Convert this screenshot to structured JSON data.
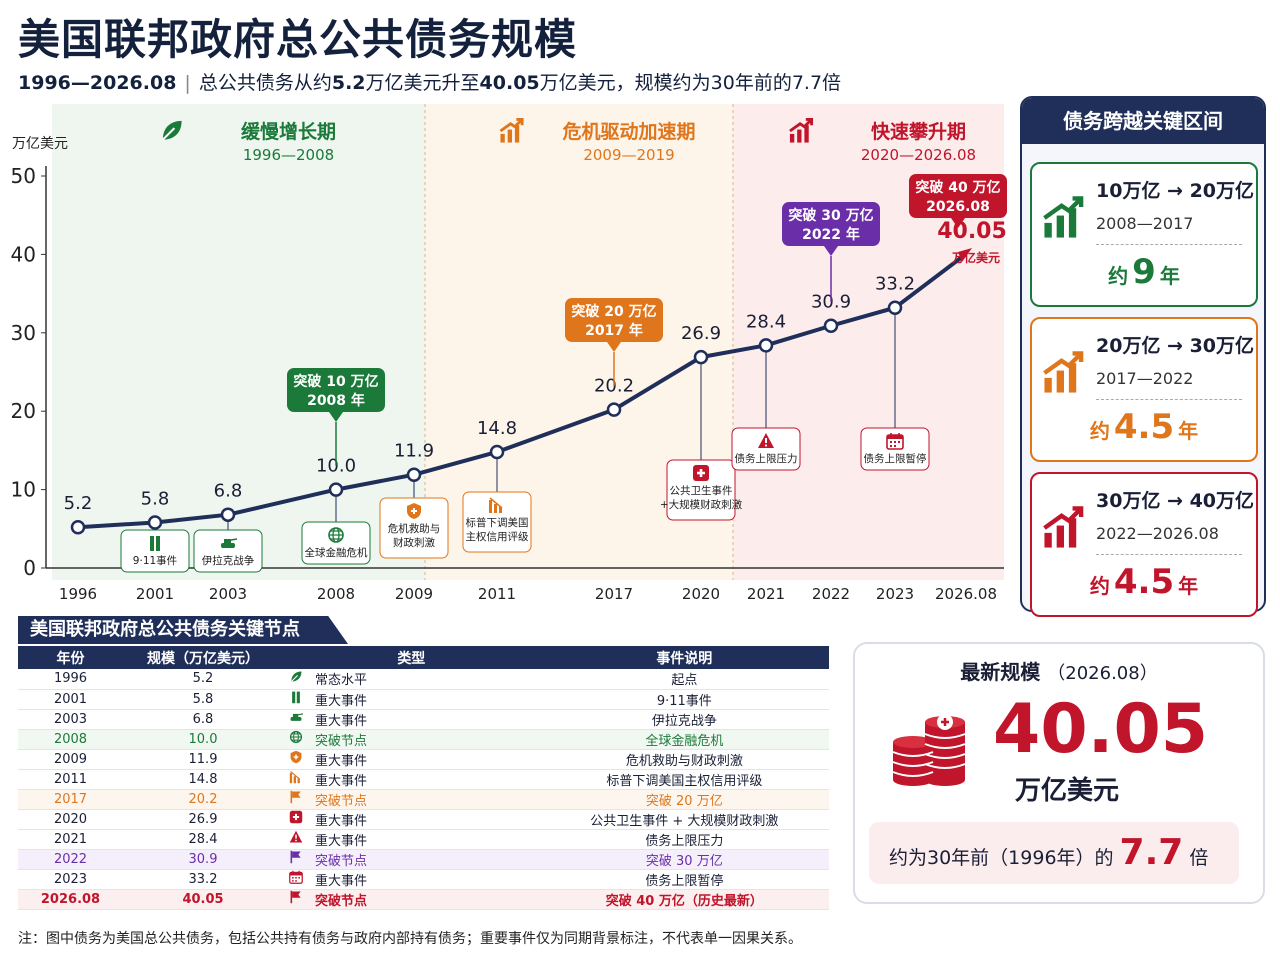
{
  "header": {
    "title": "美国联邦政府总公共债务规模",
    "range": "1996—2026.08",
    "desc_a": "总公共债务从约",
    "desc_b": "5.2",
    "desc_c": "万亿美元升至",
    "desc_d": "40.05",
    "desc_e": "万亿美元，规模约为30年前的7.7倍"
  },
  "colors": {
    "navy": "#1f2f5a",
    "green": "#1b7a3a",
    "orange": "#e0761b",
    "red": "#c0152b",
    "purple": "#6a2fa8"
  },
  "chart_data": {
    "type": "line",
    "ylabel": "万亿美元",
    "ylim": [
      0,
      50
    ],
    "yticks": [
      0,
      10,
      20,
      30,
      40,
      50
    ],
    "categories": [
      "1996",
      "2001",
      "2003",
      "2008",
      "2009",
      "2011",
      "2017",
      "2020",
      "2021",
      "2022",
      "2023",
      "2026.08"
    ],
    "values": [
      5.2,
      5.8,
      6.8,
      10.0,
      11.9,
      14.8,
      20.2,
      26.9,
      28.4,
      30.9,
      33.2,
      40.05
    ],
    "value_labels": [
      "5.2",
      "5.8",
      "6.8",
      "10.0",
      "11.9",
      "14.8",
      "20.2",
      "26.9",
      "28.4",
      "30.9",
      "33.2",
      "40.05"
    ],
    "last_unit": "万亿美元",
    "phases": [
      {
        "name": "缓慢增长期",
        "years": "1996—2008",
        "color": "#1b7a3a",
        "icon": "leaf-icon"
      },
      {
        "name": "危机驱动加速期",
        "years": "2009—2019",
        "color": "#e0761b",
        "icon": "growth-chart-icon"
      },
      {
        "name": "快速攀升期",
        "years": "2020—2026.08",
        "color": "#c0152b",
        "icon": "growth-chart-icon"
      }
    ],
    "callouts": [
      {
        "at": "2008",
        "lines": [
          "突破 10 万亿",
          "2008 年"
        ],
        "color": "#1b7a3a"
      },
      {
        "at": "2017",
        "lines": [
          "突破 20 万亿",
          "2017 年"
        ],
        "color": "#e0761b"
      },
      {
        "at": "2022",
        "lines": [
          "突破 30 万亿",
          "2022 年"
        ],
        "color": "#6a2fa8"
      },
      {
        "at": "2026.08",
        "lines": [
          "突破 40 万亿",
          "2026.08"
        ],
        "color": "#c0152b"
      }
    ],
    "events": [
      {
        "at": "2001",
        "label": [
          "9·11事件"
        ],
        "icon": "twin-towers-icon",
        "color": "#1b7a3a"
      },
      {
        "at": "2003",
        "label": [
          "伊拉克战争"
        ],
        "icon": "tank-icon",
        "color": "#1b7a3a"
      },
      {
        "at": "2008",
        "label": [
          "全球金融危机"
        ],
        "icon": "globe-icon",
        "color": "#1b7a3a"
      },
      {
        "at": "2009",
        "label": [
          "危机救助与",
          "财政刺激"
        ],
        "icon": "shield-icon",
        "color": "#e0761b"
      },
      {
        "at": "2011",
        "label": [
          "标普下调美国",
          "主权信用评级"
        ],
        "icon": "down-chart-icon",
        "color": "#e0761b"
      },
      {
        "at": "2020",
        "label": [
          "公共卫生事件",
          "+大规模财政刺激"
        ],
        "icon": "medical-cross-icon",
        "color": "#c0152b"
      },
      {
        "at": "2021",
        "label": [
          "债务上限压力"
        ],
        "icon": "warning-icon",
        "color": "#c0152b"
      },
      {
        "at": "2023",
        "label": [
          "债务上限暂停"
        ],
        "icon": "calendar-icon",
        "color": "#c0152b"
      }
    ]
  },
  "right_panel": {
    "title": "债务跨越关键区间",
    "cards": [
      {
        "range": "10万亿 → 20万亿",
        "years": "2008—2017",
        "pre": "约",
        "num": "9",
        "post": "年",
        "color": "#1b7a3a"
      },
      {
        "range": "20万亿 → 30万亿",
        "years": "2017—2022",
        "pre": "约",
        "num": "4.5",
        "post": "年",
        "color": "#e0761b"
      },
      {
        "range": "30万亿 → 40万亿",
        "years": "2022—2026.08",
        "pre": "约",
        "num": "4.5",
        "post": "年",
        "color": "#c0152b"
      }
    ]
  },
  "table": {
    "title": "美国联邦政府总公共债务关键节点",
    "headers": [
      "年份",
      "规模（万亿美元）",
      "类型",
      "事件说明"
    ],
    "rows": [
      {
        "year": "1996",
        "value": "5.2",
        "type": "常态水平",
        "desc": "起点",
        "style": "",
        "icon": "leaf-icon"
      },
      {
        "year": "2001",
        "value": "5.8",
        "type": "重大事件",
        "desc": "9·11事件",
        "style": "",
        "icon": "twin-towers-icon"
      },
      {
        "year": "2003",
        "value": "6.8",
        "type": "重大事件",
        "desc": "伊拉克战争",
        "style": "",
        "icon": "tank-icon"
      },
      {
        "year": "2008",
        "value": "10.0",
        "type": "突破节点",
        "desc": "全球金融危机",
        "style": "green",
        "icon": "globe-icon"
      },
      {
        "year": "2009",
        "value": "11.9",
        "type": "重大事件",
        "desc": "危机救助与财政刺激",
        "style": "",
        "icon": "shield-icon"
      },
      {
        "year": "2011",
        "value": "14.8",
        "type": "重大事件",
        "desc": "标普下调美国主权信用评级",
        "style": "",
        "icon": "down-chart-icon"
      },
      {
        "year": "2017",
        "value": "20.2",
        "type": "突破节点",
        "desc": "突破 20 万亿",
        "style": "orange",
        "icon": "flag-icon"
      },
      {
        "year": "2020",
        "value": "26.9",
        "type": "重大事件",
        "desc": "公共卫生事件 + 大规模财政刺激",
        "style": "",
        "icon": "medical-cross-icon"
      },
      {
        "year": "2021",
        "value": "28.4",
        "type": "重大事件",
        "desc": "债务上限压力",
        "style": "",
        "icon": "warning-icon"
      },
      {
        "year": "2022",
        "value": "30.9",
        "type": "突破节点",
        "desc": "突破 30 万亿",
        "style": "purple",
        "icon": "flag-icon"
      },
      {
        "year": "2023",
        "value": "33.2",
        "type": "重大事件",
        "desc": "债务上限暂停",
        "style": "",
        "icon": "calendar-icon"
      },
      {
        "year": "2026.08",
        "value": "40.05",
        "type": "突破节点",
        "desc": "突破 40 万亿（历史最新）",
        "style": "red",
        "icon": "flag-icon"
      }
    ]
  },
  "latest": {
    "title": "最新规模",
    "date": "（2026.08）",
    "value": "40.05",
    "unit": "万亿美元",
    "ratio_pre": "约为30年前（1996年）的",
    "ratio_num": "7.7",
    "ratio_post": "倍"
  },
  "note": "注：图中债务为美国总公共债务，包括公共持有债务与政府内部持有债务；重要事件仅为同期背景标注，不代表单一因果关系。"
}
